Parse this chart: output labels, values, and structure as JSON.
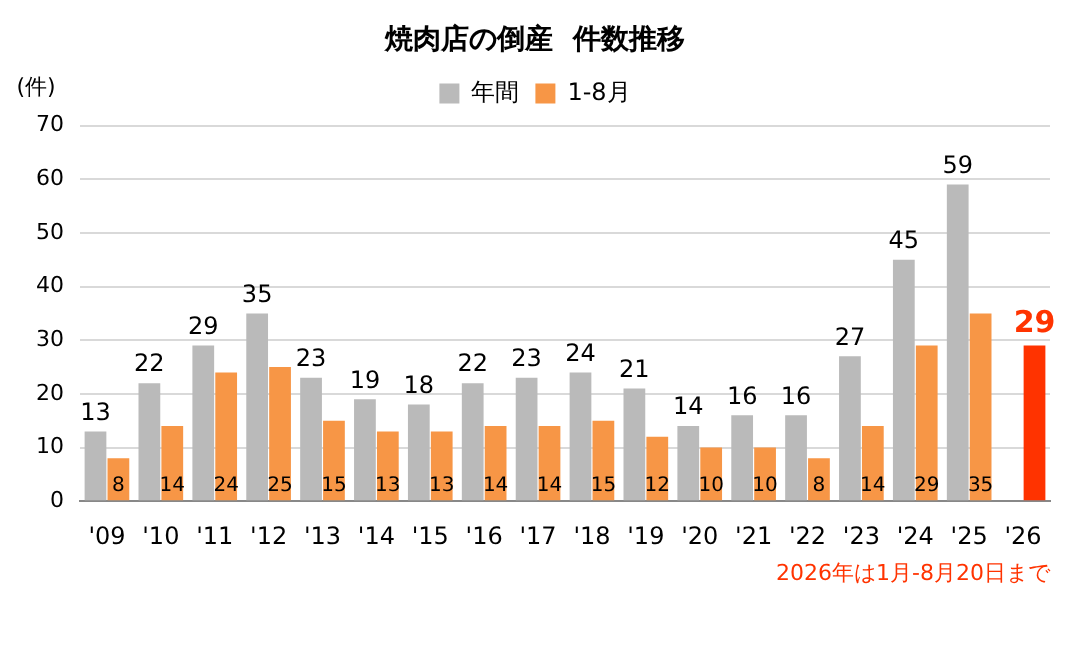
{
  "chart_data": {
    "type": "bar",
    "title": "焼肉店の倒産  件数推移",
    "ylabel": "(件)",
    "categories": [
      "'09",
      "'10",
      "'11",
      "'12",
      "'13",
      "'14",
      "'15",
      "'16",
      "'17",
      "'18",
      "'19",
      "'20",
      "'21",
      "'22",
      "'23",
      "'24",
      "'25",
      "'26"
    ],
    "series": [
      {
        "name": "年間",
        "color": "#bababa",
        "values": [
          13,
          22,
          29,
          35,
          23,
          19,
          18,
          22,
          23,
          24,
          21,
          14,
          16,
          16,
          27,
          45,
          59,
          null
        ]
      },
      {
        "name": "1-8月",
        "color": "#f79646",
        "colors": [
          "#f79646",
          "#f79646",
          "#f79646",
          "#f79646",
          "#f79646",
          "#f79646",
          "#f79646",
          "#f79646",
          "#f79646",
          "#f79646",
          "#f79646",
          "#f79646",
          "#f79646",
          "#f79646",
          "#f79646",
          "#f79646",
          "#f79646",
          "#ff3300"
        ],
        "values": [
          8,
          14,
          24,
          25,
          15,
          13,
          13,
          14,
          14,
          15,
          12,
          10,
          10,
          8,
          14,
          29,
          35,
          29
        ]
      }
    ],
    "ylim": [
      0,
      70
    ],
    "yticks": [
      0,
      10,
      20,
      30,
      40,
      50,
      60,
      70
    ],
    "grid": "y",
    "legend": "top",
    "data_labels": true,
    "annotations": [
      "2026年は1月-8月20日まで"
    ]
  }
}
